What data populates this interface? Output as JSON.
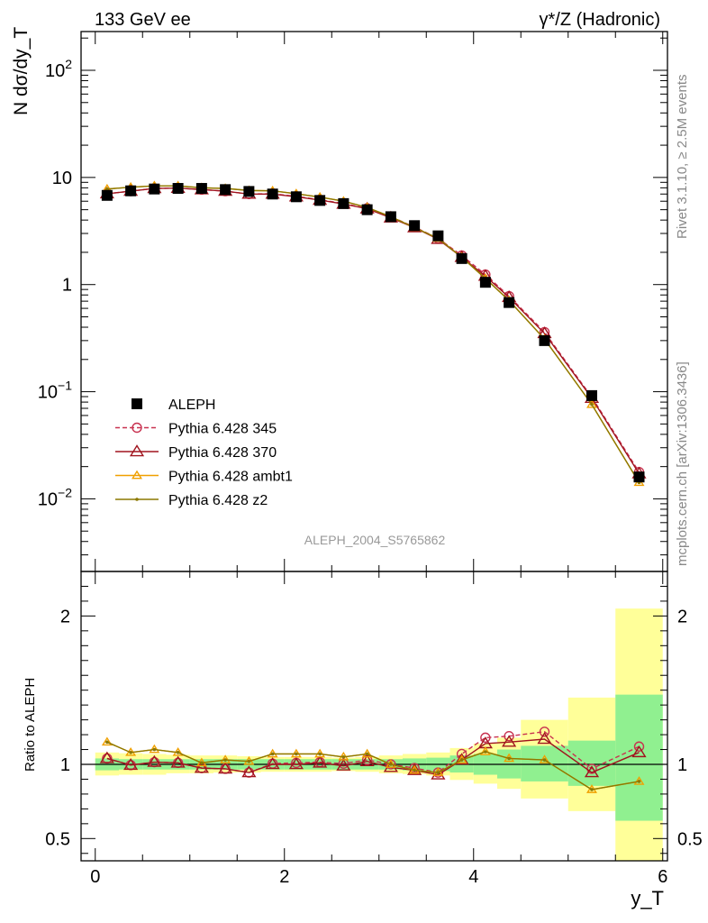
{
  "header": {
    "left_label": "133 GeV ee",
    "right_label": "γ*/Z (Hadronic)"
  },
  "side_labels": {
    "rivet": "Rivet 3.1.10, ≥ 2.5M events",
    "mcplots": "mcplots.cern.ch [arXiv:1306.3436]"
  },
  "analysis_tag": "ALEPH_2004_S5765862",
  "chart_data": [
    {
      "type": "line",
      "panel": "main",
      "ylabel": "N dσ/dy_T",
      "yscale": "log",
      "xlim": [
        -0.15,
        6.05
      ],
      "ylim": [
        0.0021,
        230
      ],
      "ytick_labels": [
        "10^-2",
        "10^-1",
        "1",
        "10",
        "10^2"
      ],
      "legend_position": "lower-left",
      "x": [
        0.125,
        0.375,
        0.625,
        0.875,
        1.125,
        1.375,
        1.625,
        1.875,
        2.125,
        2.375,
        2.625,
        2.875,
        3.125,
        3.375,
        3.625,
        3.875,
        4.125,
        4.375,
        4.75,
        5.25,
        5.75
      ],
      "series": [
        {
          "name": "ALEPH",
          "color": "#000000",
          "marker": "square",
          "linestyle": "none",
          "values": [
            6.8,
            7.5,
            7.8,
            7.9,
            7.9,
            7.7,
            7.4,
            7.0,
            6.6,
            6.1,
            5.7,
            5.0,
            4.3,
            3.55,
            2.85,
            1.75,
            1.05,
            0.68,
            0.3,
            0.092,
            0.016
          ]
        },
        {
          "name": "Pythia 6.428 345",
          "color": "#c83250",
          "marker": "open-circle",
          "linestyle": "dashed",
          "values": [
            7.05,
            7.45,
            7.9,
            7.95,
            7.7,
            7.45,
            7.0,
            7.05,
            6.65,
            6.2,
            5.7,
            5.15,
            4.3,
            3.45,
            2.7,
            1.87,
            1.24,
            0.78,
            0.36,
            0.089,
            0.0178
          ]
        },
        {
          "name": "Pythia 6.428 370",
          "color": "#a0141e",
          "marker": "open-triangle",
          "linestyle": "solid",
          "values": [
            7.05,
            7.45,
            7.9,
            7.95,
            7.7,
            7.45,
            7.0,
            7.0,
            6.6,
            6.15,
            5.65,
            5.1,
            4.2,
            3.4,
            2.65,
            1.8,
            1.2,
            0.76,
            0.35,
            0.087,
            0.0172
          ]
        },
        {
          "name": "Pythia 6.428 ambt1",
          "color": "#f0a000",
          "marker": "open-triangle",
          "linestyle": "solid",
          "values": [
            7.8,
            8.1,
            8.35,
            8.35,
            8.0,
            7.9,
            7.55,
            7.5,
            7.05,
            6.55,
            6.0,
            5.25,
            4.3,
            3.4,
            2.7,
            1.8,
            1.14,
            0.71,
            0.31,
            0.076,
            0.0142
          ]
        },
        {
          "name": "Pythia 6.428 z2",
          "color": "#8c7800",
          "marker": "dot",
          "linestyle": "solid",
          "values": [
            7.8,
            8.1,
            8.35,
            8.35,
            8.0,
            7.9,
            7.55,
            7.5,
            7.05,
            6.55,
            6.0,
            5.25,
            4.3,
            3.4,
            2.7,
            1.8,
            1.14,
            0.71,
            0.31,
            0.076,
            0.0142
          ]
        }
      ]
    },
    {
      "type": "line",
      "panel": "ratio",
      "xlabel": "y_T",
      "ylabel": "Ratio to ALEPH",
      "xlim": [
        -0.15,
        6.05
      ],
      "ylim": [
        0.35,
        2.3
      ],
      "xtick_labels": [
        "0",
        "2",
        "4",
        "6"
      ],
      "ytick_labels": [
        "0.5",
        "1",
        "2"
      ],
      "reference_line": 1.0,
      "bins": [
        [
          0,
          0.25
        ],
        [
          0.25,
          0.5
        ],
        [
          0.5,
          0.75
        ],
        [
          0.75,
          1.0
        ],
        [
          1.0,
          1.25
        ],
        [
          1.25,
          1.5
        ],
        [
          1.5,
          1.75
        ],
        [
          1.75,
          2.0
        ],
        [
          2.0,
          2.25
        ],
        [
          2.25,
          2.5
        ],
        [
          2.5,
          2.75
        ],
        [
          2.75,
          3.0
        ],
        [
          3.0,
          3.25
        ],
        [
          3.25,
          3.5
        ],
        [
          3.5,
          3.75
        ],
        [
          3.75,
          4.0
        ],
        [
          4.0,
          4.25
        ],
        [
          4.25,
          4.5
        ],
        [
          4.5,
          5.0
        ],
        [
          5.0,
          5.5
        ],
        [
          5.5,
          6.0
        ]
      ],
      "band_stat": {
        "color": "#90f090",
        "lo": [
          0.96,
          0.965,
          0.965,
          0.965,
          0.965,
          0.965,
          0.965,
          0.965,
          0.965,
          0.965,
          0.965,
          0.965,
          0.965,
          0.96,
          0.955,
          0.945,
          0.93,
          0.905,
          0.885,
          0.855,
          0.62
        ],
        "hi": [
          1.04,
          1.035,
          1.035,
          1.035,
          1.035,
          1.035,
          1.035,
          1.035,
          1.035,
          1.035,
          1.035,
          1.035,
          1.035,
          1.04,
          1.045,
          1.06,
          1.07,
          1.1,
          1.125,
          1.16,
          1.47
        ]
      },
      "band_syst": {
        "color": "#ffff99",
        "lo": [
          0.925,
          0.93,
          0.93,
          0.94,
          0.94,
          0.945,
          0.945,
          0.95,
          0.95,
          0.95,
          0.955,
          0.95,
          0.94,
          0.935,
          0.925,
          0.895,
          0.87,
          0.835,
          0.77,
          0.685,
          0.35
        ],
        "hi": [
          1.08,
          1.075,
          1.07,
          1.065,
          1.06,
          1.06,
          1.055,
          1.05,
          1.05,
          1.05,
          1.045,
          1.05,
          1.06,
          1.07,
          1.08,
          1.11,
          1.14,
          1.18,
          1.3,
          1.45,
          2.05
        ]
      },
      "x": [
        0.125,
        0.375,
        0.625,
        0.875,
        1.125,
        1.375,
        1.625,
        1.875,
        2.125,
        2.375,
        2.625,
        2.875,
        3.125,
        3.375,
        3.625,
        3.875,
        4.125,
        4.375,
        4.75,
        5.25,
        5.75
      ],
      "series": [
        {
          "name": "Pythia 6.428 345",
          "color": "#c83250",
          "marker": "open-circle",
          "linestyle": "dashed",
          "values": [
            1.04,
            0.995,
            1.015,
            1.01,
            0.975,
            0.97,
            0.945,
            1.005,
            1.01,
            1.015,
            1.005,
            1.03,
            1.0,
            0.975,
            0.945,
            1.07,
            1.18,
            1.19,
            1.22,
            0.97,
            1.12
          ]
        },
        {
          "name": "Pythia 6.428 370",
          "color": "#a0141e",
          "marker": "open-triangle",
          "linestyle": "solid",
          "values": [
            1.04,
            0.995,
            1.015,
            1.01,
            0.975,
            0.97,
            0.945,
            1.0,
            1.0,
            1.01,
            0.99,
            1.02,
            0.98,
            0.96,
            0.93,
            1.03,
            1.14,
            1.15,
            1.17,
            0.945,
            1.08
          ]
        },
        {
          "name": "Pythia 6.428 ambt1",
          "color": "#f0a000",
          "marker": "open-triangle",
          "linestyle": "solid",
          "values": [
            1.15,
            1.08,
            1.1,
            1.08,
            1.01,
            1.03,
            1.02,
            1.07,
            1.07,
            1.07,
            1.05,
            1.07,
            1.0,
            0.96,
            0.945,
            1.03,
            1.085,
            1.04,
            1.03,
            0.83,
            0.885
          ]
        },
        {
          "name": "Pythia 6.428 z2",
          "color": "#8c7800",
          "marker": "dot",
          "linestyle": "solid",
          "values": [
            1.15,
            1.08,
            1.1,
            1.08,
            1.01,
            1.03,
            1.02,
            1.07,
            1.07,
            1.07,
            1.05,
            1.07,
            1.0,
            0.96,
            0.945,
            1.03,
            1.085,
            1.04,
            1.03,
            0.83,
            0.885
          ]
        }
      ]
    }
  ]
}
